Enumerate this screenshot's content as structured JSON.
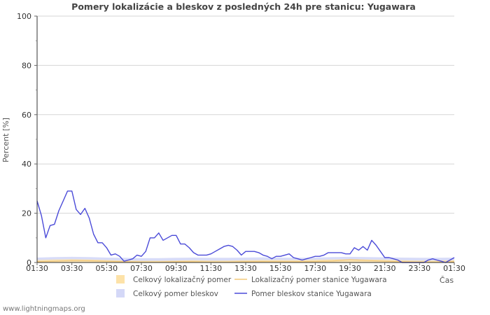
{
  "chart_data": {
    "type": "area",
    "title": "Pomery lokalizácie a bleskov z posledných 24h pre stanicu: Yugawara",
    "ylabel": "Percent   [%]",
    "xlabel": "Čas",
    "ylim": [
      0,
      100
    ],
    "y_ticks": [
      0,
      20,
      40,
      60,
      80,
      100
    ],
    "x_range_hours": [
      0,
      24
    ],
    "x_ticks": [
      {
        "h": 0,
        "label": "01:30"
      },
      {
        "h": 2,
        "label": "03:30"
      },
      {
        "h": 4,
        "label": "05:30"
      },
      {
        "h": 6,
        "label": "07:30"
      },
      {
        "h": 8,
        "label": "09:30"
      },
      {
        "h": 10,
        "label": "11:30"
      },
      {
        "h": 12,
        "label": "13:30"
      },
      {
        "h": 14,
        "label": "15:30"
      },
      {
        "h": 16,
        "label": "17:30"
      },
      {
        "h": 18,
        "label": "19:30"
      },
      {
        "h": 20,
        "label": "21:30"
      },
      {
        "h": 22,
        "label": "23:30"
      },
      {
        "h": 24,
        "label": "01:30"
      }
    ],
    "series": [
      {
        "name": "Celkový lokalizačný pomer",
        "kind": "area",
        "color": "#fde2a8",
        "x_hours": [
          0,
          1,
          2,
          3,
          4,
          5,
          6,
          7,
          8,
          9,
          10,
          11,
          12,
          13,
          14,
          15,
          16,
          17,
          18,
          19,
          20,
          21,
          22,
          23,
          24
        ],
        "values": [
          1.0,
          1.2,
          1.3,
          1.2,
          1.0,
          0.8,
          0.7,
          0.7,
          0.8,
          0.9,
          0.8,
          0.8,
          0.9,
          1.0,
          1.0,
          0.9,
          1.1,
          1.2,
          1.3,
          1.2,
          1.1,
          0.9,
          0.8,
          0.8,
          0.9
        ]
      },
      {
        "name": "Celkový pomer bleskov",
        "kind": "area",
        "color": "#d4d8f7",
        "x_hours": [
          0,
          1,
          2,
          3,
          4,
          5,
          6,
          7,
          8,
          9,
          10,
          11,
          12,
          13,
          14,
          15,
          16,
          17,
          18,
          19,
          20,
          21,
          22,
          23,
          24
        ],
        "values": [
          2.0,
          2.2,
          2.3,
          2.2,
          2.0,
          1.9,
          1.8,
          1.8,
          1.9,
          2.0,
          1.9,
          1.9,
          2.0,
          2.1,
          2.0,
          1.9,
          2.0,
          2.2,
          2.3,
          2.2,
          2.1,
          2.0,
          1.9,
          1.9,
          2.0
        ]
      },
      {
        "name": "Lokalizačný pomer stanice Yugawara",
        "kind": "line",
        "color": "#f2c879",
        "x_hours": [
          0,
          1,
          2,
          3,
          4,
          5,
          6,
          7,
          8,
          9,
          10,
          11,
          12,
          13,
          14,
          15,
          16,
          17,
          18,
          19,
          20,
          21,
          22,
          23,
          24
        ],
        "values": [
          0.3,
          0.5,
          0.8,
          0.7,
          0.5,
          0.3,
          0.2,
          0.2,
          0.3,
          0.3,
          0.2,
          0.2,
          0.3,
          0.4,
          0.3,
          0.3,
          0.4,
          0.6,
          1.2,
          0.8,
          0.5,
          0.3,
          0.2,
          0.2,
          0.3
        ]
      },
      {
        "name": "Pomer bleskov stanice Yugawara",
        "kind": "line",
        "color": "#4a4ad8",
        "x_hours": [
          0,
          0.25,
          0.5,
          0.75,
          1.0,
          1.25,
          1.5,
          1.75,
          2.0,
          2.25,
          2.5,
          2.75,
          3.0,
          3.25,
          3.5,
          3.75,
          4.0,
          4.25,
          4.5,
          4.75,
          5.0,
          5.25,
          5.5,
          5.75,
          6.0,
          6.25,
          6.5,
          6.75,
          7.0,
          7.25,
          7.5,
          7.75,
          8.0,
          8.25,
          8.5,
          8.75,
          9.0,
          9.25,
          9.5,
          9.75,
          10.0,
          10.25,
          10.5,
          10.75,
          11.0,
          11.25,
          11.5,
          11.75,
          12.0,
          12.25,
          12.5,
          12.75,
          13.0,
          13.25,
          13.5,
          13.75,
          14.0,
          14.25,
          14.5,
          14.75,
          15.0,
          15.25,
          15.5,
          15.75,
          16.0,
          16.25,
          16.5,
          16.75,
          17.0,
          17.25,
          17.5,
          17.75,
          18.0,
          18.25,
          18.5,
          18.75,
          19.0,
          19.25,
          19.5,
          19.75,
          20.0,
          20.25,
          20.5,
          20.75,
          21.0,
          21.25,
          21.5,
          21.75,
          22.0,
          22.25,
          22.5,
          22.75,
          23.0,
          23.25,
          23.5,
          23.75,
          24.0
        ],
        "values": [
          25,
          19,
          10,
          15,
          15.5,
          21,
          25,
          29,
          29,
          21.5,
          19.5,
          22,
          18,
          11.5,
          8,
          8,
          6,
          3,
          3.5,
          2.5,
          0.5,
          1,
          1.5,
          3,
          2.5,
          4.5,
          10,
          10,
          12,
          9,
          10,
          11,
          11,
          7.5,
          7.5,
          6,
          4,
          3,
          3,
          3,
          3.5,
          4.5,
          5.5,
          6.5,
          7,
          6.5,
          5,
          3,
          4.5,
          4.5,
          4.5,
          4,
          3,
          2.5,
          1.5,
          2.5,
          2.5,
          3,
          3.5,
          2,
          1.5,
          1,
          1.5,
          2,
          2.5,
          2.5,
          3,
          4,
          4,
          4,
          4,
          3.5,
          3.5,
          6,
          5,
          6.5,
          5,
          9,
          7,
          4.5,
          2,
          2,
          1.5,
          1,
          0,
          0,
          0,
          0,
          0,
          0,
          1,
          1.5,
          1,
          0.5,
          0,
          1,
          2
        ]
      }
    ],
    "legend": [
      {
        "label": "Celkový lokalizačný pomer",
        "kind": "box",
        "color": "#fde2a8"
      },
      {
        "label": "Lokalizačný pomer stanice Yugawara",
        "kind": "line",
        "color": "#f2c879"
      },
      {
        "label": "Celkový pomer bleskov",
        "kind": "box",
        "color": "#d4d8f7"
      },
      {
        "label": "Pomer bleskov stanice Yugawara",
        "kind": "line",
        "color": "#4a4ad8"
      }
    ]
  },
  "footer": {
    "credit": "www.lightningmaps.org"
  }
}
